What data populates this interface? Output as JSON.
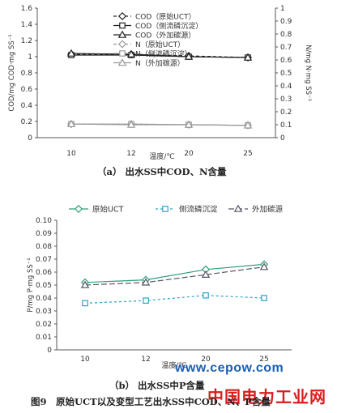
{
  "chart_data": [
    {
      "type": "line",
      "x": [
        10,
        12,
        20,
        25
      ],
      "xlabel": "温度/℃",
      "ylabel": "COD/mg COD·mg SS⁻¹",
      "y2label": "N/mg N·mg SS⁻¹",
      "ylim": [
        0,
        1.6
      ],
      "y2lim": [
        0,
        1.0
      ],
      "yticks": [
        "0",
        "0.2",
        "0.4",
        "0.6",
        "0.8",
        "1",
        "1.2",
        "1.4",
        "1.6"
      ],
      "y2ticks": [
        "0",
        "0.1",
        "0.2",
        "0.3",
        "0.4",
        "0.5",
        "0.6",
        "0.7",
        "0.8",
        "0.9",
        "1"
      ],
      "legend_position": "top",
      "grid": false,
      "series": [
        {
          "name": "COD（原始UCT）",
          "axis": "left",
          "values": [
            1.03,
            1.03,
            1.01,
            0.99
          ],
          "color": "#222222",
          "marker": "diamond",
          "dash": "4,3"
        },
        {
          "name": "COD（侧流磷沉淀）",
          "axis": "left",
          "values": [
            1.02,
            1.02,
            1.0,
            0.99
          ],
          "color": "#222222",
          "marker": "square",
          "dash": ""
        },
        {
          "name": "COD（外加碳源）",
          "axis": "left",
          "values": [
            1.04,
            1.03,
            1.0,
            0.99
          ],
          "color": "#222222",
          "marker": "triangle",
          "dash": ""
        },
        {
          "name": "N（原始UCT）",
          "axis": "right",
          "values": [
            0.105,
            0.105,
            0.1,
            0.095
          ],
          "color": "#999999",
          "marker": "diamond",
          "dash": "4,3"
        },
        {
          "name": "N（侧流磷沉淀）",
          "axis": "right",
          "values": [
            0.105,
            0.105,
            0.1,
            0.095
          ],
          "color": "#999999",
          "marker": "square",
          "dash": ""
        },
        {
          "name": "N（外加碳源）",
          "axis": "right",
          "values": [
            0.105,
            0.1,
            0.1,
            0.095
          ],
          "color": "#999999",
          "marker": "triangle",
          "dash": ""
        }
      ]
    },
    {
      "type": "line",
      "x": [
        10,
        12,
        20,
        25
      ],
      "xlabel": "温度/℃",
      "ylabel": "P/mg P·mg SS⁻¹",
      "ylim": [
        0,
        0.1
      ],
      "yticks": [
        "0",
        "0.01",
        "0.02",
        "0.03",
        "0.04",
        "0.05",
        "0.06",
        "0.07",
        "0.08",
        "0.09",
        "0.10"
      ],
      "legend_position": "top",
      "grid": false,
      "series": [
        {
          "name": "原始UCT",
          "values": [
            0.052,
            0.054,
            0.062,
            0.066
          ],
          "color": "#2e9e7c",
          "marker": "diamond",
          "dash": ""
        },
        {
          "name": "侧流磷沉淀",
          "values": [
            0.036,
            0.038,
            0.042,
            0.04
          ],
          "color": "#2aa4c8",
          "marker": "square",
          "dash": "3,3"
        },
        {
          "name": "外加碳源",
          "values": [
            0.05,
            0.052,
            0.058,
            0.064
          ],
          "color": "#555566",
          "marker": "triangle",
          "dash": "7,3"
        }
      ]
    }
  ],
  "captions": {
    "a": "（a） 出水SS中COD、N含量",
    "b": "（b） 出水SS中P含量",
    "figure": "图9　原始UCT以及变型工艺出水SS中COD、N、P含量"
  },
  "watermark": {
    "site": "www.cepow.com",
    "name": "中国电力工业网"
  }
}
